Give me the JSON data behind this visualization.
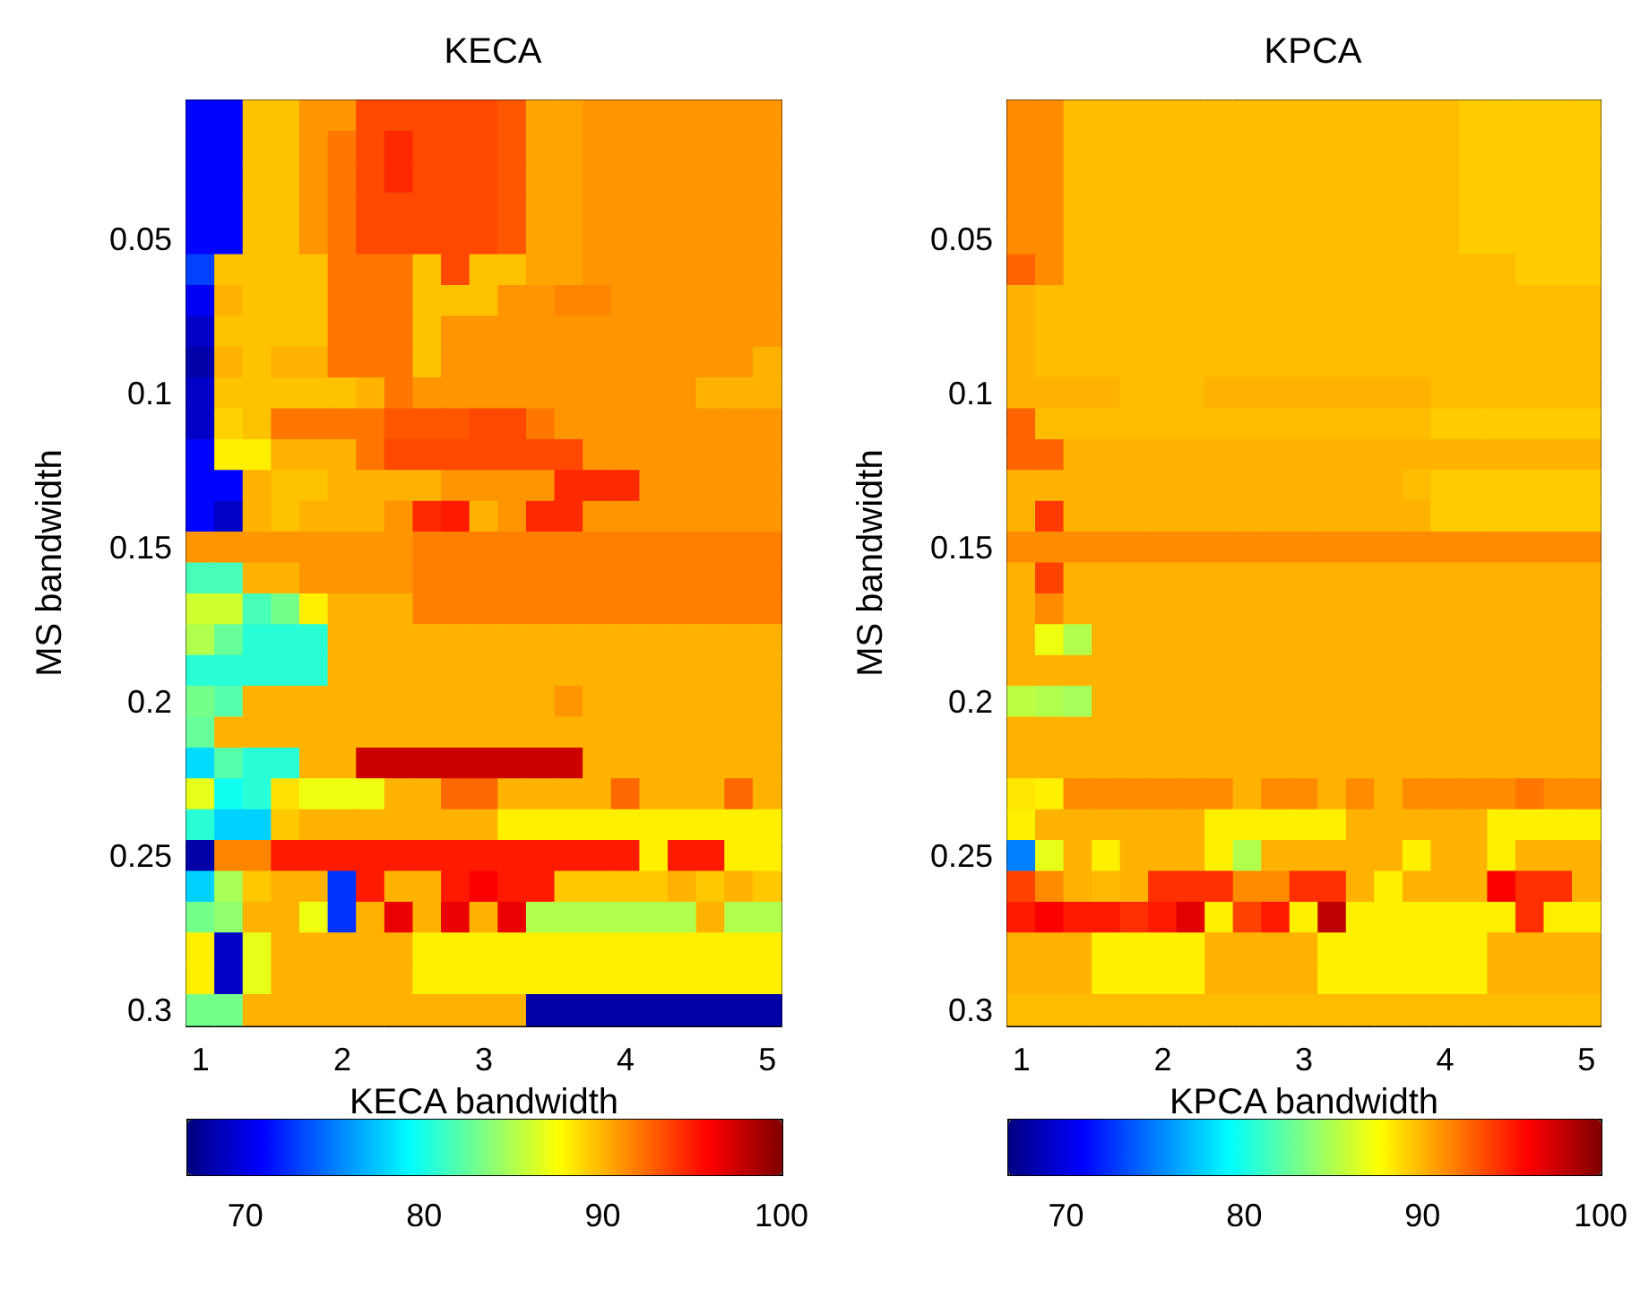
{
  "chart_data": [
    {
      "type": "heatmap",
      "title": "KECA",
      "xlabel": "KECA bandwidth",
      "ylabel": "MS bandwidth",
      "categories": [
        "1",
        null,
        null,
        null,
        null,
        "2",
        null,
        null,
        null,
        null,
        "3",
        null,
        null,
        null,
        null,
        "4",
        null,
        null,
        null,
        null,
        "5"
      ],
      "y_categories": [
        null,
        null,
        null,
        null,
        "0.05",
        null,
        null,
        null,
        null,
        "0.1",
        null,
        null,
        null,
        null,
        "0.15",
        null,
        null,
        null,
        null,
        "0.2",
        null,
        null,
        null,
        null,
        "0.25",
        null,
        null,
        null,
        null,
        "0.3"
      ],
      "clim": [
        66.7,
        100
      ],
      "cticks": [
        70,
        80,
        90,
        100
      ],
      "cells": [
        [
          71,
          71,
          89.5,
          89.5,
          91,
          91,
          93.5,
          93.5,
          93.5,
          93.5,
          93.5,
          93,
          90.5,
          90.5,
          91,
          91,
          91,
          91,
          91,
          91,
          91
        ],
        [
          71,
          71,
          89.5,
          89.5,
          91,
          92,
          93.5,
          94.5,
          93.5,
          93.5,
          93.5,
          93,
          90.5,
          90.5,
          91,
          91,
          91,
          91,
          91,
          91,
          91
        ],
        [
          71,
          71,
          89.5,
          89.5,
          91,
          92,
          93.5,
          94.5,
          93.5,
          93.5,
          93.5,
          93,
          90.5,
          90.5,
          91,
          91,
          91,
          91,
          91,
          91,
          91
        ],
        [
          71,
          71,
          89.5,
          89.5,
          91,
          92,
          93.5,
          93.5,
          93.5,
          93.5,
          93.5,
          93,
          90.5,
          90.5,
          91,
          91,
          91,
          91,
          91,
          91,
          91
        ],
        [
          71,
          71,
          89.5,
          89.5,
          91,
          92,
          93.5,
          93.5,
          93.5,
          93.5,
          93.5,
          93,
          90.5,
          90.5,
          91,
          91,
          91,
          91,
          91,
          91,
          91
        ],
        [
          73,
          89.5,
          89.5,
          89.5,
          89.5,
          92,
          92,
          92,
          89.5,
          93.5,
          89.5,
          89.5,
          90.5,
          90.5,
          91,
          91,
          91,
          91,
          91,
          91,
          91
        ],
        [
          70.5,
          90,
          89.5,
          89.5,
          89.5,
          92,
          92,
          92,
          89.5,
          89.5,
          89.5,
          91,
          91,
          91.5,
          91.5,
          91,
          91,
          91,
          91,
          91,
          91
        ],
        [
          69,
          89.5,
          89.5,
          89.5,
          89.5,
          92,
          92,
          92,
          89.5,
          91,
          91,
          91,
          91,
          91,
          91,
          91,
          91,
          91,
          91,
          91,
          91
        ],
        [
          68,
          90,
          89.5,
          90,
          90,
          92,
          92,
          92,
          89.5,
          91,
          91,
          91,
          91,
          91,
          91,
          91,
          91,
          91,
          91,
          91,
          90
        ],
        [
          69,
          89.5,
          89.5,
          89.5,
          89.5,
          89.5,
          90,
          92,
          91,
          91,
          91,
          91,
          91,
          91,
          91,
          91,
          91,
          91,
          90,
          90,
          90
        ],
        [
          69,
          89,
          89.5,
          92,
          92,
          92,
          92,
          93,
          93,
          93,
          93.5,
          93.5,
          92,
          91,
          91,
          91,
          91,
          91,
          91,
          91,
          91
        ],
        [
          71,
          88,
          88,
          90,
          90,
          90,
          92,
          93.5,
          93.5,
          93.5,
          93.5,
          93.5,
          93.5,
          93.5,
          91,
          91,
          91,
          91,
          91,
          91,
          91
        ],
        [
          71,
          71,
          90,
          89.5,
          89.5,
          90,
          90,
          90,
          90,
          91,
          91,
          91,
          91,
          94.5,
          94.5,
          94.5,
          91,
          91,
          91,
          91,
          91
        ],
        [
          71,
          69,
          90,
          89.5,
          90,
          90,
          90,
          91,
          94.5,
          95,
          90,
          91,
          94.5,
          94.5,
          91,
          91,
          91,
          91,
          91,
          91,
          91
        ],
        [
          91,
          91,
          91,
          91,
          91,
          91,
          91,
          91,
          91.7,
          91.7,
          91.7,
          91.7,
          91.7,
          91.7,
          91.7,
          91.7,
          91.7,
          91.7,
          91.7,
          91.7,
          91.7
        ],
        [
          81.5,
          81.5,
          90,
          90,
          91,
          91,
          91,
          91,
          91.7,
          91.7,
          91.7,
          91.7,
          91.7,
          91.7,
          91.7,
          91.7,
          91.7,
          91.7,
          91.7,
          91.7,
          91.7
        ],
        [
          86,
          86,
          81.5,
          83,
          88,
          90,
          90,
          90,
          91.7,
          91.7,
          91.7,
          91.7,
          91.7,
          91.7,
          91.7,
          91.7,
          91.7,
          91.7,
          91.7,
          91.7,
          91.7
        ],
        [
          85,
          82.5,
          80.5,
          80.5,
          80.5,
          90,
          90,
          90,
          90,
          90,
          90,
          90,
          90,
          90,
          90,
          90,
          90,
          90,
          90,
          90,
          90
        ],
        [
          80.5,
          80.5,
          80.5,
          80.5,
          80.5,
          90,
          90,
          90,
          90,
          90,
          90,
          90,
          90,
          90,
          90,
          90,
          90,
          90,
          90,
          90,
          90
        ],
        [
          83,
          82,
          90,
          90,
          90,
          90,
          90,
          90,
          90,
          90,
          90,
          90,
          90,
          91,
          90,
          90,
          90,
          90,
          90,
          90,
          90
        ],
        [
          82.5,
          90,
          90,
          90,
          90,
          90,
          90,
          90,
          90,
          90,
          90,
          90,
          90,
          90,
          90,
          90,
          90,
          90,
          90,
          90,
          90
        ],
        [
          78,
          82,
          80.5,
          80.5,
          90,
          90,
          97.5,
          97.5,
          97.5,
          97.5,
          97.5,
          97.5,
          97.5,
          97.5,
          90,
          90,
          90,
          90,
          90,
          90,
          90
        ],
        [
          86.7,
          79.7,
          80.5,
          88.5,
          87,
          87,
          87,
          90,
          90,
          92.5,
          92.5,
          90,
          90,
          90,
          90,
          92.5,
          90,
          90,
          90,
          92.5,
          90
        ],
        [
          80.5,
          77.7,
          77.7,
          89.3,
          90,
          90,
          90,
          90,
          90,
          90,
          90,
          88,
          88,
          88,
          88,
          88,
          88,
          88,
          88,
          88,
          88
        ],
        [
          68,
          91.5,
          91.5,
          95,
          95,
          95,
          95,
          95,
          95,
          95,
          95,
          95,
          95,
          95,
          95,
          95,
          88,
          95,
          95,
          88,
          88
        ],
        [
          77.7,
          84.7,
          89.3,
          90,
          90,
          72.5,
          95,
          90,
          90,
          95,
          96,
          95,
          95,
          89.3,
          89.3,
          89.3,
          89.3,
          90,
          89.3,
          90,
          89.3
        ],
        [
          83,
          84,
          90,
          90,
          87,
          72.5,
          90,
          96.5,
          90,
          96.5,
          90,
          96.5,
          85,
          85,
          85,
          85,
          85,
          85,
          90,
          85,
          85
        ],
        [
          88,
          69,
          86.7,
          90,
          90,
          90,
          90,
          90,
          88,
          88,
          88,
          88,
          88,
          88,
          88,
          88,
          88,
          88,
          88,
          88,
          88
        ],
        [
          88,
          69,
          86.7,
          90,
          90,
          90,
          90,
          90,
          88,
          88,
          88,
          88,
          88,
          88,
          88,
          88,
          88,
          88,
          88,
          88,
          88
        ],
        [
          83,
          83,
          90,
          90,
          90,
          90,
          90,
          90,
          90,
          90,
          90,
          90,
          68,
          68,
          68,
          68,
          68,
          68,
          68,
          68,
          68
        ]
      ]
    },
    {
      "type": "heatmap",
      "title": "KPCA",
      "xlabel": "KPCA bandwidth",
      "ylabel": "MS bandwidth",
      "categories": [
        "1",
        null,
        null,
        null,
        null,
        "2",
        null,
        null,
        null,
        null,
        "3",
        null,
        null,
        null,
        null,
        "4",
        null,
        null,
        null,
        null,
        "5"
      ],
      "y_categories": [
        null,
        null,
        null,
        null,
        "0.05",
        null,
        null,
        null,
        null,
        "0.1",
        null,
        null,
        null,
        null,
        "0.15",
        null,
        null,
        null,
        null,
        "0.2",
        null,
        null,
        null,
        null,
        "0.25",
        null,
        null,
        null,
        null,
        "0.3"
      ],
      "clim": [
        66.7,
        100
      ],
      "cticks": [
        70,
        80,
        90,
        100
      ],
      "cells": [
        [
          91.3,
          91.3,
          89.7,
          89.7,
          89.7,
          89.7,
          89.7,
          89.7,
          89.7,
          89.7,
          89.7,
          89.7,
          89.7,
          89.7,
          89.7,
          89.7,
          89.2,
          89.2,
          89.2,
          89.2,
          89.2
        ],
        [
          91.3,
          91.3,
          89.7,
          89.7,
          89.7,
          89.7,
          89.7,
          89.7,
          89.7,
          89.7,
          89.7,
          89.7,
          89.7,
          89.7,
          89.7,
          89.7,
          89.2,
          89.2,
          89.2,
          89.2,
          89.2
        ],
        [
          91.3,
          91.3,
          89.7,
          89.7,
          89.7,
          89.7,
          89.7,
          89.7,
          89.7,
          89.7,
          89.7,
          89.7,
          89.7,
          89.7,
          89.7,
          89.7,
          89.2,
          89.2,
          89.2,
          89.2,
          89.2
        ],
        [
          91.3,
          91.3,
          89.7,
          89.7,
          89.7,
          89.7,
          89.7,
          89.7,
          89.7,
          89.7,
          89.7,
          89.7,
          89.7,
          89.7,
          89.7,
          89.7,
          89.2,
          89.2,
          89.2,
          89.2,
          89.2
        ],
        [
          91.3,
          91.3,
          89.7,
          89.7,
          89.7,
          89.7,
          89.7,
          89.7,
          89.7,
          89.7,
          89.7,
          89.7,
          89.7,
          89.7,
          89.7,
          89.7,
          89.2,
          89.2,
          89.2,
          89.2,
          89.2
        ],
        [
          92.6,
          91.3,
          89.7,
          89.7,
          89.7,
          89.7,
          89.7,
          89.7,
          89.7,
          89.7,
          89.7,
          89.7,
          89.7,
          89.7,
          89.7,
          89.7,
          89.7,
          89.7,
          89.2,
          89.2,
          89.2
        ],
        [
          90,
          89.7,
          89.7,
          89.7,
          89.7,
          89.7,
          89.7,
          89.7,
          89.7,
          89.7,
          89.7,
          89.7,
          89.7,
          89.7,
          89.7,
          89.7,
          89.7,
          89.7,
          89.7,
          89.7,
          89.7
        ],
        [
          90,
          89.7,
          89.7,
          89.7,
          89.7,
          89.7,
          89.7,
          89.7,
          89.7,
          89.7,
          89.7,
          89.7,
          89.7,
          89.7,
          89.7,
          89.7,
          89.7,
          89.7,
          89.7,
          89.7,
          89.7
        ],
        [
          90,
          89.7,
          89.7,
          89.7,
          89.7,
          89.7,
          89.7,
          89.7,
          89.7,
          89.7,
          89.7,
          89.7,
          89.7,
          89.7,
          89.7,
          89.7,
          89.7,
          89.7,
          89.7,
          89.7,
          89.7
        ],
        [
          90,
          90,
          90,
          90,
          89.7,
          89.7,
          89.7,
          90,
          90,
          90,
          90,
          90,
          90,
          90,
          90,
          89.7,
          89.7,
          89.7,
          89.7,
          89.7,
          89.7
        ],
        [
          92.6,
          89.7,
          89.7,
          89.7,
          89.7,
          89.7,
          89.7,
          89.7,
          89.7,
          89.7,
          89.7,
          89.7,
          89.7,
          89.7,
          89.7,
          89.2,
          89.2,
          89.2,
          89.2,
          89.2,
          89.2
        ],
        [
          92.6,
          92.6,
          90,
          90,
          90,
          90,
          90,
          90,
          90,
          90,
          90,
          90,
          90,
          90,
          90,
          90,
          90,
          90,
          90,
          90,
          90
        ],
        [
          90,
          90,
          90,
          90,
          90,
          90,
          90,
          90,
          90,
          90,
          90,
          90,
          90,
          90,
          89.7,
          89.2,
          89.2,
          89.2,
          89.2,
          89.2,
          89.2
        ],
        [
          90,
          94,
          90,
          90,
          90,
          90,
          90,
          90,
          90,
          90,
          90,
          90,
          90,
          90,
          90,
          89.2,
          89.2,
          89.2,
          89.2,
          89.2,
          89.2
        ],
        [
          91.3,
          91.3,
          91.3,
          91.3,
          91.3,
          91.3,
          91.3,
          91.3,
          91.3,
          91.3,
          91.3,
          91.3,
          91.3,
          91.3,
          91.3,
          91.3,
          91.3,
          91.3,
          91.3,
          91.3,
          91.3
        ],
        [
          90,
          93.7,
          90,
          90,
          90,
          90,
          90,
          90,
          90,
          90,
          90,
          90,
          90,
          90,
          90,
          90,
          90,
          90,
          90,
          90,
          90
        ],
        [
          90,
          91.3,
          90,
          90,
          90,
          90,
          90,
          90,
          90,
          90,
          90,
          90,
          90,
          90,
          90,
          90,
          90,
          90,
          90,
          90,
          90
        ],
        [
          90,
          87,
          85,
          90,
          90,
          90,
          90,
          90,
          90,
          90,
          90,
          90,
          90,
          90,
          90,
          90,
          90,
          90,
          90,
          90,
          90
        ],
        [
          90,
          90,
          90,
          90,
          90,
          90,
          90,
          90,
          90,
          90,
          90,
          90,
          90,
          90,
          90,
          90,
          90,
          90,
          90,
          90,
          90
        ],
        [
          85.4,
          85,
          84.6,
          90,
          90,
          90,
          90,
          90,
          90,
          90,
          90,
          90,
          90,
          90,
          90,
          90,
          90,
          90,
          90,
          90,
          90
        ],
        [
          90,
          90,
          90,
          90,
          90,
          90,
          90,
          90,
          90,
          90,
          90,
          90,
          90,
          90,
          90,
          90,
          90,
          90,
          90,
          90,
          90
        ],
        [
          90,
          90,
          90,
          90,
          90,
          90,
          90,
          90,
          90,
          90,
          90,
          90,
          90,
          90,
          90,
          90,
          90,
          90,
          90,
          90,
          90
        ],
        [
          88.3,
          88,
          91.3,
          91.3,
          91.3,
          91.3,
          91.3,
          91.3,
          90,
          91.3,
          91.3,
          90,
          91.3,
          90,
          91.3,
          91.3,
          91.3,
          91.3,
          92,
          91.3,
          91.3
        ],
        [
          88,
          90,
          90,
          90,
          90,
          90,
          90,
          88,
          88,
          88,
          88,
          88,
          90,
          90,
          90,
          90,
          90,
          88,
          88,
          88,
          88
        ],
        [
          75,
          86.7,
          90,
          88,
          90,
          90,
          90,
          88,
          85,
          90,
          90,
          90,
          90,
          90,
          88,
          90,
          90,
          88,
          90,
          90,
          90
        ],
        [
          93.7,
          91.3,
          90,
          89.8,
          90,
          94.3,
          94.3,
          94.3,
          91.3,
          91.3,
          94.3,
          94.3,
          90,
          88,
          90,
          90,
          90,
          96,
          94.3,
          94.3,
          90
        ],
        [
          95,
          96,
          95,
          95,
          94.3,
          95,
          96.8,
          88,
          93.7,
          95,
          88,
          98,
          88,
          88,
          88,
          88,
          88,
          88,
          94.3,
          88,
          88
        ],
        [
          90,
          90,
          90,
          88,
          88,
          88,
          88,
          90,
          90,
          90,
          90,
          88,
          88,
          88,
          88,
          88,
          88,
          90,
          90,
          90,
          90
        ],
        [
          90,
          90,
          90,
          88,
          88,
          88,
          88,
          90,
          90,
          90,
          90,
          88,
          88,
          88,
          88,
          88,
          88,
          90,
          90,
          90,
          90
        ],
        [
          89.7,
          89.7,
          89.7,
          89.7,
          89.7,
          89.7,
          89.7,
          89.7,
          89.7,
          89.7,
          89.7,
          89.7,
          89.7,
          89.7,
          89.7,
          89.7,
          89.7,
          89.7,
          89.7,
          89.7,
          89.7
        ]
      ]
    }
  ]
}
